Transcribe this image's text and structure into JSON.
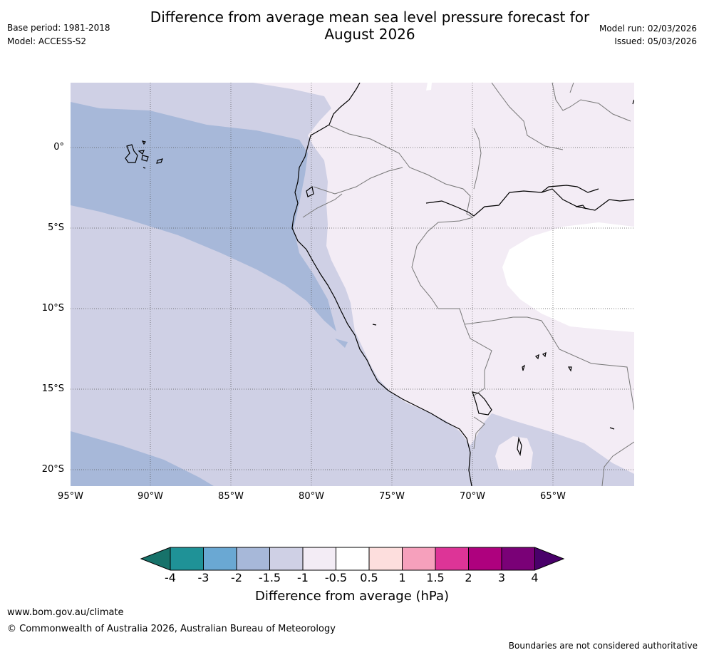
{
  "header": {
    "title_line1": "Difference from average mean sea level pressure forecast for",
    "title_line2": "August 2026",
    "base_period": "Base period: 1981-2018",
    "model": "Model: ACCESS-S2",
    "model_run": "Model run: 02/03/2026",
    "issued": "Issued: 05/03/2026"
  },
  "map": {
    "lat_labels": [
      "0°",
      "5°S",
      "10°S",
      "15°S",
      "20°S"
    ],
    "lon_labels": [
      "95°W",
      "90°W",
      "85°W",
      "80°W",
      "75°W",
      "70°W",
      "65°W"
    ]
  },
  "colorbar": {
    "labels": [
      "-4",
      "-3",
      "-2",
      "-1.5",
      "-1",
      "-0.5",
      "0.5",
      "1",
      "1.5",
      "2",
      "3",
      "4"
    ],
    "colors": [
      "#17726a",
      "#1f9297",
      "#6aa8d3",
      "#a7b8d9",
      "#cfd0e5",
      "#f3ecf5",
      "#ffffff",
      "#fddedd",
      "#f6a0bc",
      "#dd3497",
      "#ae017e",
      "#7a0177",
      "#49006a"
    ],
    "title": "Difference from average (hPa)"
  },
  "footer": {
    "url": "www.bom.gov.au/climate",
    "copyright": "© Commonwealth of Australia 2026, Australian Bureau of Meteorology",
    "disclaimer": "Boundaries are not considered authoritative"
  }
}
